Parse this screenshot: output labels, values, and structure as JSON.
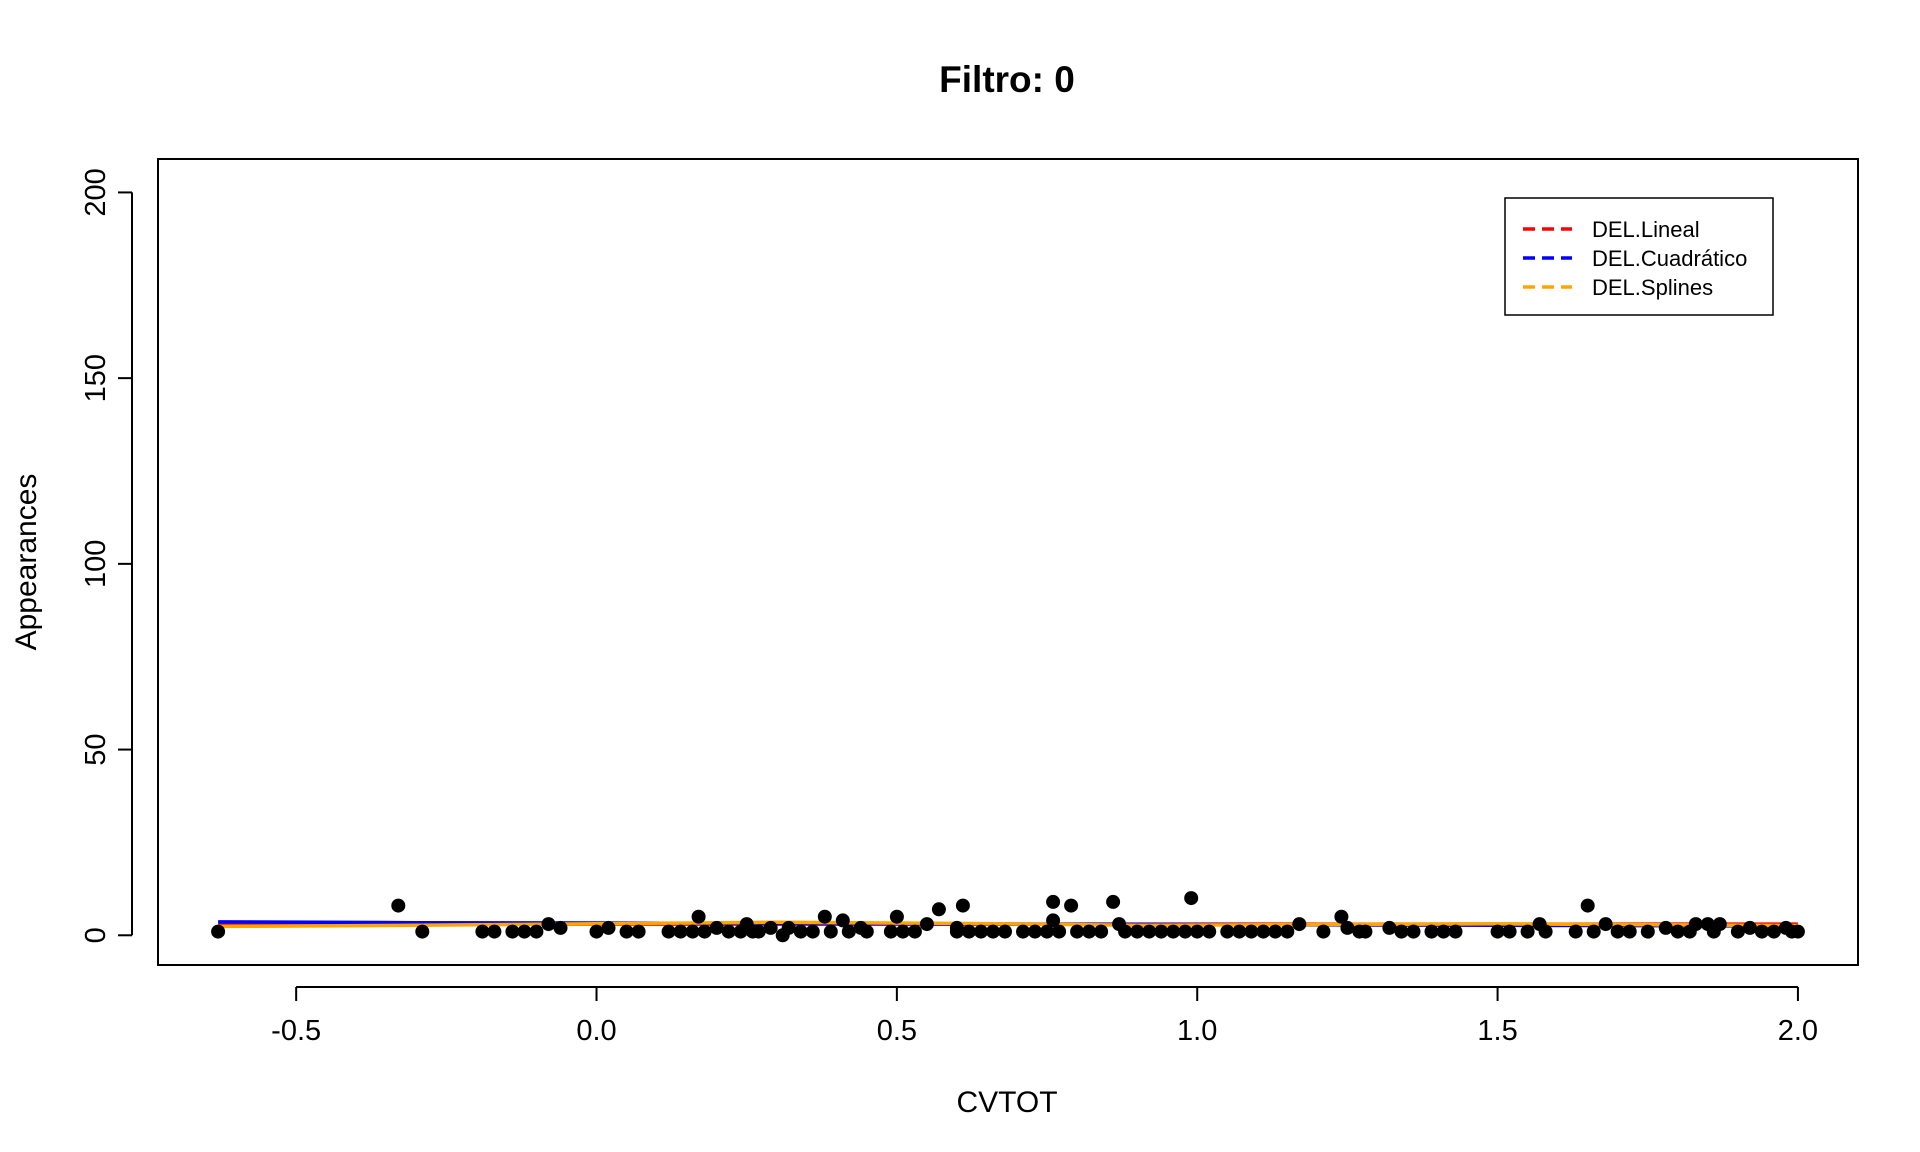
{
  "chart_data": {
    "type": "scatter",
    "title": "Filtro:  0",
    "xlabel": "CVTOT",
    "ylabel": "Appearances",
    "xlim": [
      -0.73,
      2.1
    ],
    "ylim": [
      -8,
      209
    ],
    "xticks": [
      -0.5,
      0.0,
      0.5,
      1.0,
      1.5,
      2.0
    ],
    "xtick_labels": [
      "-0.5",
      "0.0",
      "0.5",
      "1.0",
      "1.5",
      "2.0"
    ],
    "yticks": [
      0,
      50,
      100,
      150,
      200
    ],
    "ytick_labels": [
      "0",
      "50",
      "100",
      "150",
      "200"
    ],
    "grid": false,
    "legend_position": "top-right",
    "points": [
      [
        -0.63,
        1
      ],
      [
        -0.33,
        8
      ],
      [
        -0.29,
        1
      ],
      [
        -0.19,
        1
      ],
      [
        -0.17,
        1
      ],
      [
        -0.14,
        1
      ],
      [
        -0.12,
        1
      ],
      [
        -0.1,
        1
      ],
      [
        -0.08,
        3
      ],
      [
        -0.06,
        2
      ],
      [
        0.0,
        1
      ],
      [
        0.02,
        2
      ],
      [
        0.05,
        1
      ],
      [
        0.07,
        1
      ],
      [
        0.12,
        1
      ],
      [
        0.14,
        1
      ],
      [
        0.16,
        1
      ],
      [
        0.17,
        5
      ],
      [
        0.18,
        1
      ],
      [
        0.2,
        2
      ],
      [
        0.22,
        1
      ],
      [
        0.24,
        1
      ],
      [
        0.25,
        3
      ],
      [
        0.26,
        1
      ],
      [
        0.27,
        1
      ],
      [
        0.29,
        2
      ],
      [
        0.31,
        0
      ],
      [
        0.32,
        2
      ],
      [
        0.34,
        1
      ],
      [
        0.36,
        1
      ],
      [
        0.38,
        5
      ],
      [
        0.39,
        1
      ],
      [
        0.41,
        4
      ],
      [
        0.42,
        1
      ],
      [
        0.44,
        2
      ],
      [
        0.45,
        1
      ],
      [
        0.49,
        1
      ],
      [
        0.5,
        5
      ],
      [
        0.51,
        1
      ],
      [
        0.53,
        1
      ],
      [
        0.55,
        3
      ],
      [
        0.57,
        7
      ],
      [
        0.6,
        2
      ],
      [
        0.61,
        8
      ],
      [
        0.6,
        1
      ],
      [
        0.62,
        1
      ],
      [
        0.64,
        1
      ],
      [
        0.66,
        1
      ],
      [
        0.68,
        1
      ],
      [
        0.71,
        1
      ],
      [
        0.73,
        1
      ],
      [
        0.75,
        1
      ],
      [
        0.76,
        9
      ],
      [
        0.76,
        4
      ],
      [
        0.77,
        1
      ],
      [
        0.79,
        8
      ],
      [
        0.8,
        1
      ],
      [
        0.82,
        1
      ],
      [
        0.84,
        1
      ],
      [
        0.86,
        9
      ],
      [
        0.87,
        3
      ],
      [
        0.88,
        1
      ],
      [
        0.9,
        1
      ],
      [
        0.92,
        1
      ],
      [
        0.94,
        1
      ],
      [
        0.96,
        1
      ],
      [
        0.98,
        1
      ],
      [
        0.99,
        10
      ],
      [
        1.0,
        1
      ],
      [
        1.02,
        1
      ],
      [
        1.05,
        1
      ],
      [
        1.07,
        1
      ],
      [
        1.09,
        1
      ],
      [
        1.11,
        1
      ],
      [
        1.13,
        1
      ],
      [
        1.15,
        1
      ],
      [
        1.17,
        3
      ],
      [
        1.21,
        1
      ],
      [
        1.24,
        5
      ],
      [
        1.25,
        2
      ],
      [
        1.27,
        1
      ],
      [
        1.28,
        1
      ],
      [
        1.32,
        2
      ],
      [
        1.34,
        1
      ],
      [
        1.36,
        1
      ],
      [
        1.39,
        1
      ],
      [
        1.41,
        1
      ],
      [
        1.43,
        1
      ],
      [
        1.5,
        1
      ],
      [
        1.52,
        1
      ],
      [
        1.55,
        1
      ],
      [
        1.57,
        3
      ],
      [
        1.58,
        1
      ],
      [
        1.63,
        1
      ],
      [
        1.65,
        8
      ],
      [
        1.66,
        1
      ],
      [
        1.68,
        3
      ],
      [
        1.7,
        1
      ],
      [
        1.72,
        1
      ],
      [
        1.75,
        1
      ],
      [
        1.78,
        2
      ],
      [
        1.8,
        1
      ],
      [
        1.82,
        1
      ],
      [
        1.83,
        3
      ],
      [
        1.85,
        3
      ],
      [
        1.86,
        1
      ],
      [
        1.87,
        3
      ],
      [
        1.9,
        1
      ],
      [
        1.92,
        2
      ],
      [
        1.94,
        1
      ],
      [
        1.96,
        1
      ],
      [
        1.98,
        2
      ],
      [
        1.99,
        1
      ],
      [
        2.0,
        1
      ]
    ],
    "series": [
      {
        "name": "DEL.Lineal",
        "color": "#FF0000",
        "style": "dashed",
        "x": [
          -0.63,
          2.0
        ],
        "y": [
          3.0,
          3.0
        ]
      },
      {
        "name": "DEL.Cuadrático",
        "color": "#0000FF",
        "style": "dashed",
        "x": [
          -0.63,
          -0.3,
          0.0,
          0.5,
          1.0,
          1.5,
          2.0
        ],
        "y": [
          3.6,
          3.4,
          3.3,
          3.1,
          2.9,
          2.7,
          2.5
        ]
      },
      {
        "name": "DEL.Splines",
        "color": "#FFA500",
        "style": "dashed",
        "x": [
          -0.63,
          -0.3,
          0.0,
          0.3,
          0.6,
          0.9,
          1.2,
          1.5,
          1.8,
          2.0
        ],
        "y": [
          2.4,
          2.7,
          3.1,
          3.5,
          3.2,
          2.7,
          2.9,
          3.1,
          2.8,
          2.6
        ]
      }
    ],
    "point_color": "#000000"
  }
}
